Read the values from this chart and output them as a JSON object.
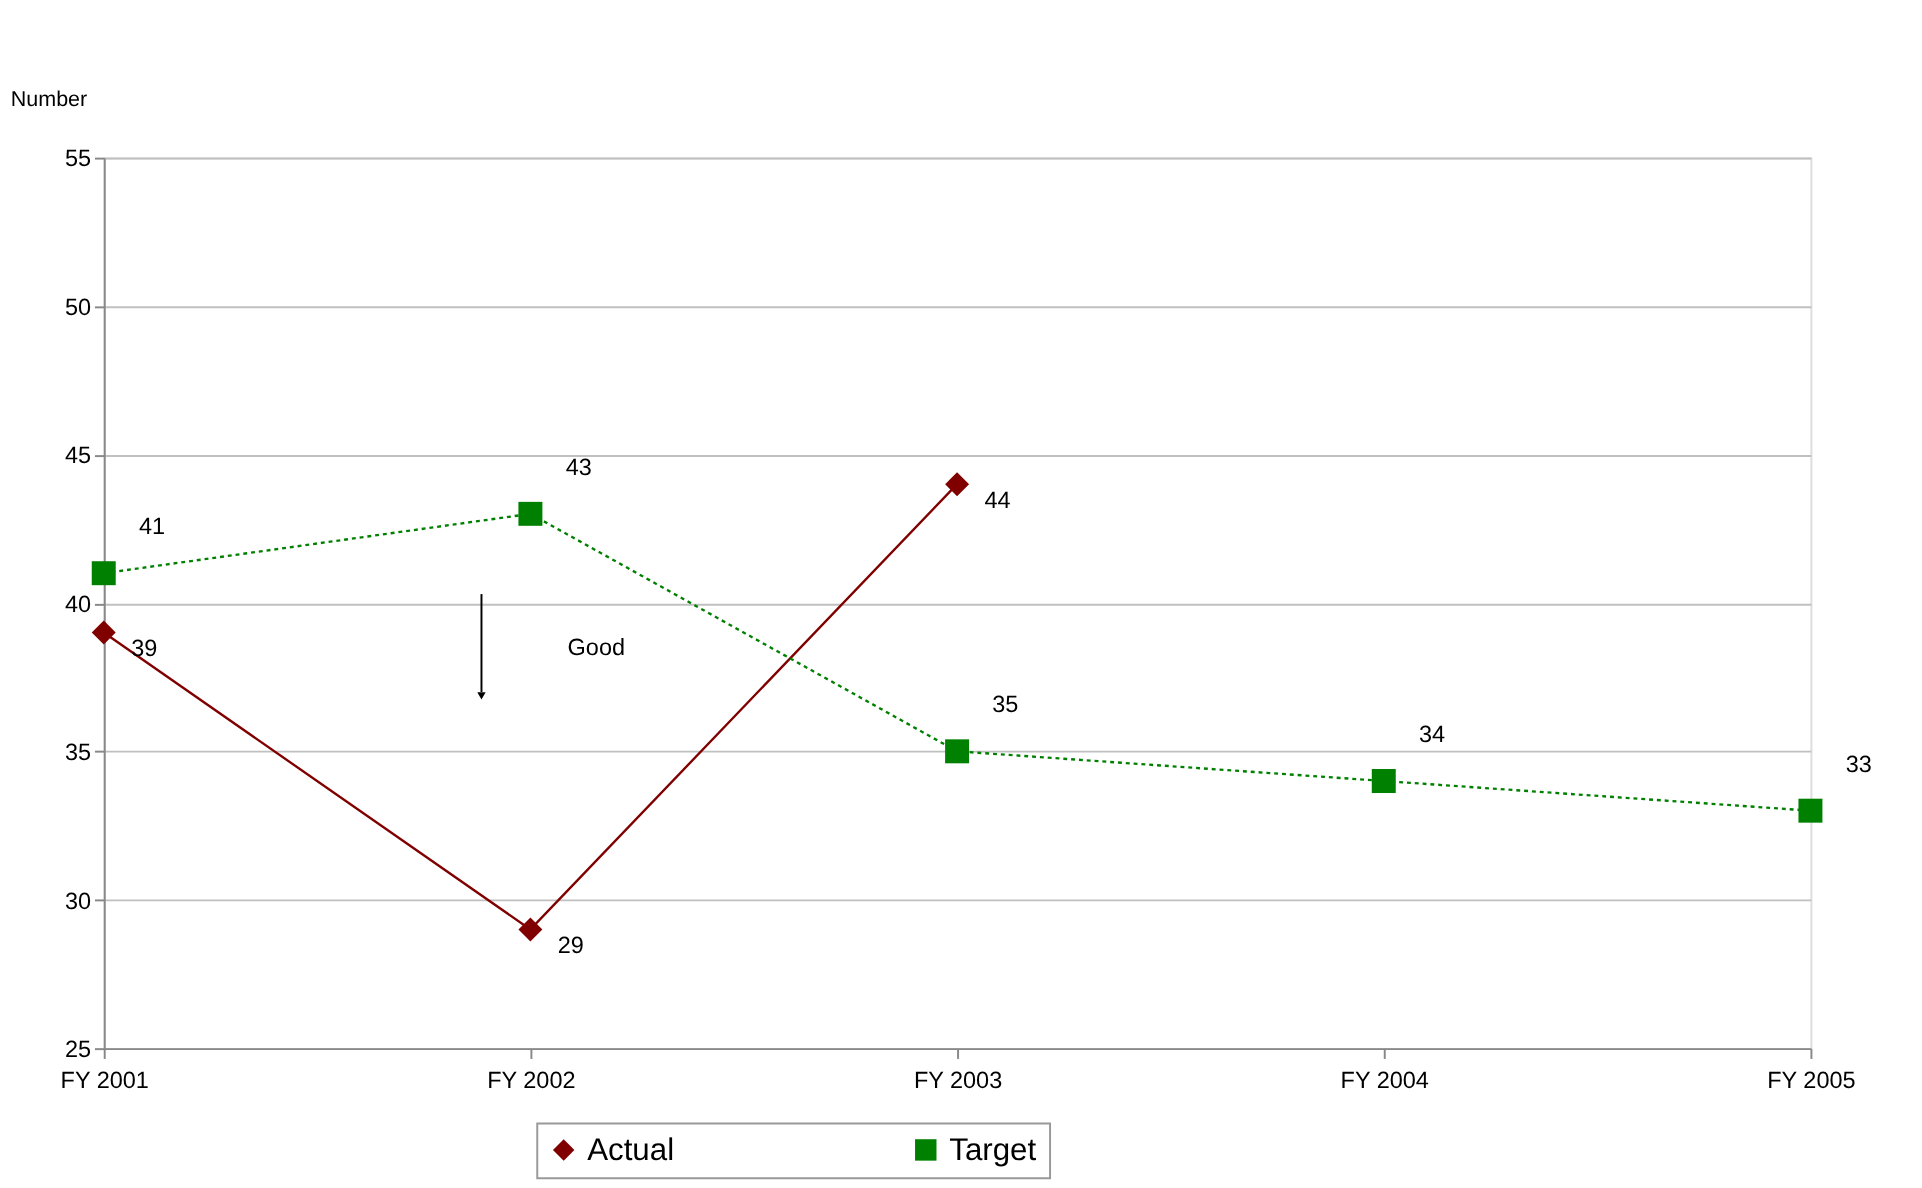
{
  "chart_data": {
    "type": "line",
    "ylabel": "Number",
    "categories": [
      "FY 2001",
      "FY 2002",
      "FY 2003",
      "FY 2004",
      "FY 2005"
    ],
    "series": [
      {
        "name": "Actual",
        "color": "#800000",
        "marker": "diamond",
        "line_style": "solid",
        "values": [
          39,
          29,
          44,
          null,
          null
        ]
      },
      {
        "name": "Target",
        "color": "#008000",
        "marker": "square",
        "line_style": "dotted",
        "values": [
          41,
          43,
          35,
          34,
          33
        ]
      }
    ],
    "ylim": [
      25,
      55
    ],
    "yticks": [
      25,
      30,
      35,
      40,
      45,
      50,
      55
    ],
    "grid": "y",
    "legend": "bottom",
    "data_labels": true,
    "annotations": [
      "Good"
    ]
  }
}
